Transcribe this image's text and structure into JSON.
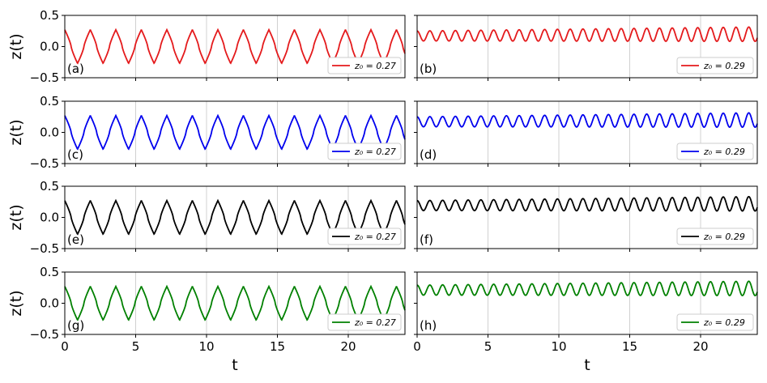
{
  "chart_data": [
    {
      "type": "line",
      "panel": "(a)",
      "xlabel": "",
      "ylabel": "z(t)",
      "xlim": [
        0,
        24
      ],
      "ylim": [
        -0.5,
        0.5
      ],
      "xticks": [],
      "yticks": [
        "0.5",
        "0.0",
        "−0.5"
      ],
      "grid": "x",
      "legend_position": "lower-right",
      "series": [
        {
          "name": "z₀ = 0.27",
          "z0": 0.27,
          "regime": "oscillating",
          "amplitude": 0.27,
          "offset": 0,
          "period": 1.8,
          "color": "#e41a1c"
        }
      ]
    },
    {
      "type": "line",
      "panel": "(b)",
      "xlabel": "",
      "ylabel": "",
      "xlim": [
        0,
        24
      ],
      "ylim": [
        -0.5,
        0.5
      ],
      "xticks": [],
      "yticks": [],
      "grid": "x",
      "legend_position": "lower-right",
      "series": [
        {
          "name": "z₀ = 0.29",
          "z0": 0.29,
          "regime": "self-trapped",
          "amplitude": 0.08,
          "offset": 0.17,
          "period": 0.9,
          "color": "#e41a1c"
        }
      ]
    },
    {
      "type": "line",
      "panel": "(c)",
      "xlabel": "",
      "ylabel": "z(t)",
      "xlim": [
        0,
        24
      ],
      "ylim": [
        -0.5,
        0.5
      ],
      "xticks": [],
      "yticks": [
        "0.5",
        "0.0",
        "−0.5"
      ],
      "grid": "x",
      "legend_position": "lower-right",
      "series": [
        {
          "name": "z₀ = 0.27",
          "z0": 0.27,
          "regime": "oscillating",
          "amplitude": 0.27,
          "offset": 0,
          "period": 1.8,
          "color": "#0000ee"
        }
      ]
    },
    {
      "type": "line",
      "panel": "(d)",
      "xlabel": "",
      "ylabel": "",
      "xlim": [
        0,
        24
      ],
      "ylim": [
        -0.5,
        0.5
      ],
      "xticks": [],
      "yticks": [],
      "grid": "x",
      "legend_position": "lower-right",
      "series": [
        {
          "name": "z₀ = 0.29",
          "z0": 0.29,
          "regime": "self-trapped",
          "amplitude": 0.08,
          "offset": 0.17,
          "period": 0.9,
          "color": "#0000ee"
        }
      ]
    },
    {
      "type": "line",
      "panel": "(e)",
      "xlabel": "",
      "ylabel": "z(t)",
      "xlim": [
        0,
        24
      ],
      "ylim": [
        -0.5,
        0.5
      ],
      "xticks": [],
      "yticks": [
        "0.5",
        "0.0",
        "−0.5"
      ],
      "grid": "x",
      "legend_position": "lower-right",
      "series": [
        {
          "name": "z₀ = 0.27",
          "z0": 0.27,
          "regime": "oscillating",
          "amplitude": 0.27,
          "offset": 0,
          "period": 1.8,
          "color": "#000000"
        }
      ]
    },
    {
      "type": "line",
      "panel": "(f)",
      "xlabel": "",
      "ylabel": "",
      "xlim": [
        0,
        24
      ],
      "ylim": [
        -0.5,
        0.5
      ],
      "xticks": [],
      "yticks": [],
      "grid": "x",
      "legend_position": "lower-right",
      "series": [
        {
          "name": "z₀ = 0.29",
          "z0": 0.29,
          "regime": "self-trapped",
          "amplitude": 0.08,
          "offset": 0.19,
          "period": 0.9,
          "color": "#000000"
        }
      ]
    },
    {
      "type": "line",
      "panel": "(g)",
      "xlabel": "t",
      "ylabel": "z(t)",
      "xlim": [
        0,
        24
      ],
      "ylim": [
        -0.5,
        0.5
      ],
      "xticks": [
        "0",
        "5",
        "10",
        "15",
        "20"
      ],
      "yticks": [
        "0.5",
        "0.0",
        "−0.5"
      ],
      "grid": "x",
      "legend_position": "lower-right",
      "series": [
        {
          "name": "z₀ = 0.27",
          "z0": 0.27,
          "regime": "oscillating",
          "amplitude": 0.27,
          "offset": 0,
          "period": 1.8,
          "color": "#008000"
        }
      ]
    },
    {
      "type": "line",
      "panel": "(h)",
      "xlabel": "t",
      "ylabel": "",
      "xlim": [
        0,
        24
      ],
      "ylim": [
        -0.5,
        0.5
      ],
      "xticks": [
        "0",
        "5",
        "10",
        "15",
        "20"
      ],
      "yticks": [],
      "grid": "x",
      "legend_position": "lower-right",
      "series": [
        {
          "name": "z₀ = 0.29",
          "z0": 0.29,
          "regime": "self-trapped",
          "amplitude": 0.08,
          "offset": 0.21,
          "period": 0.9,
          "color": "#008000"
        }
      ]
    }
  ]
}
